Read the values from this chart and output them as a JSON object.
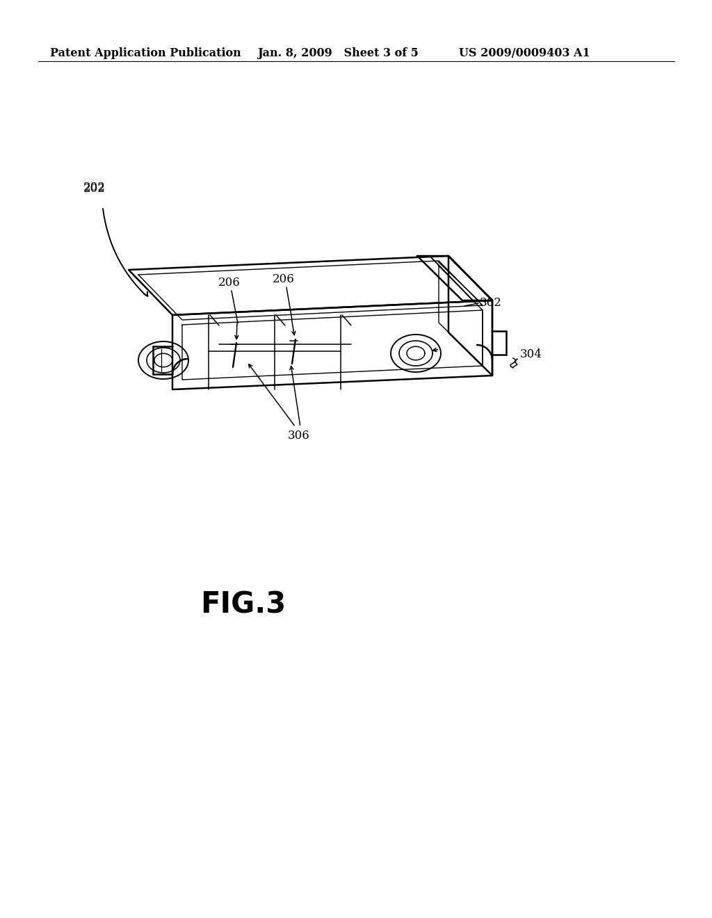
{
  "background_color": "#ffffff",
  "header_left": "Patent Application Publication",
  "header_center": "Jan. 8, 2009   Sheet 3 of 5",
  "header_right": "US 2009/0009403 A1",
  "line_color": "#000000",
  "line_width": 1.4,
  "label_202": "202",
  "label_206a": "206",
  "label_206b": "206",
  "label_302": "302",
  "label_304": "304",
  "label_306": "306",
  "figure_label": "FIG.3",
  "header_fontsize": 11.5,
  "label_fontsize": 12,
  "fig_label_fontsize": 30
}
